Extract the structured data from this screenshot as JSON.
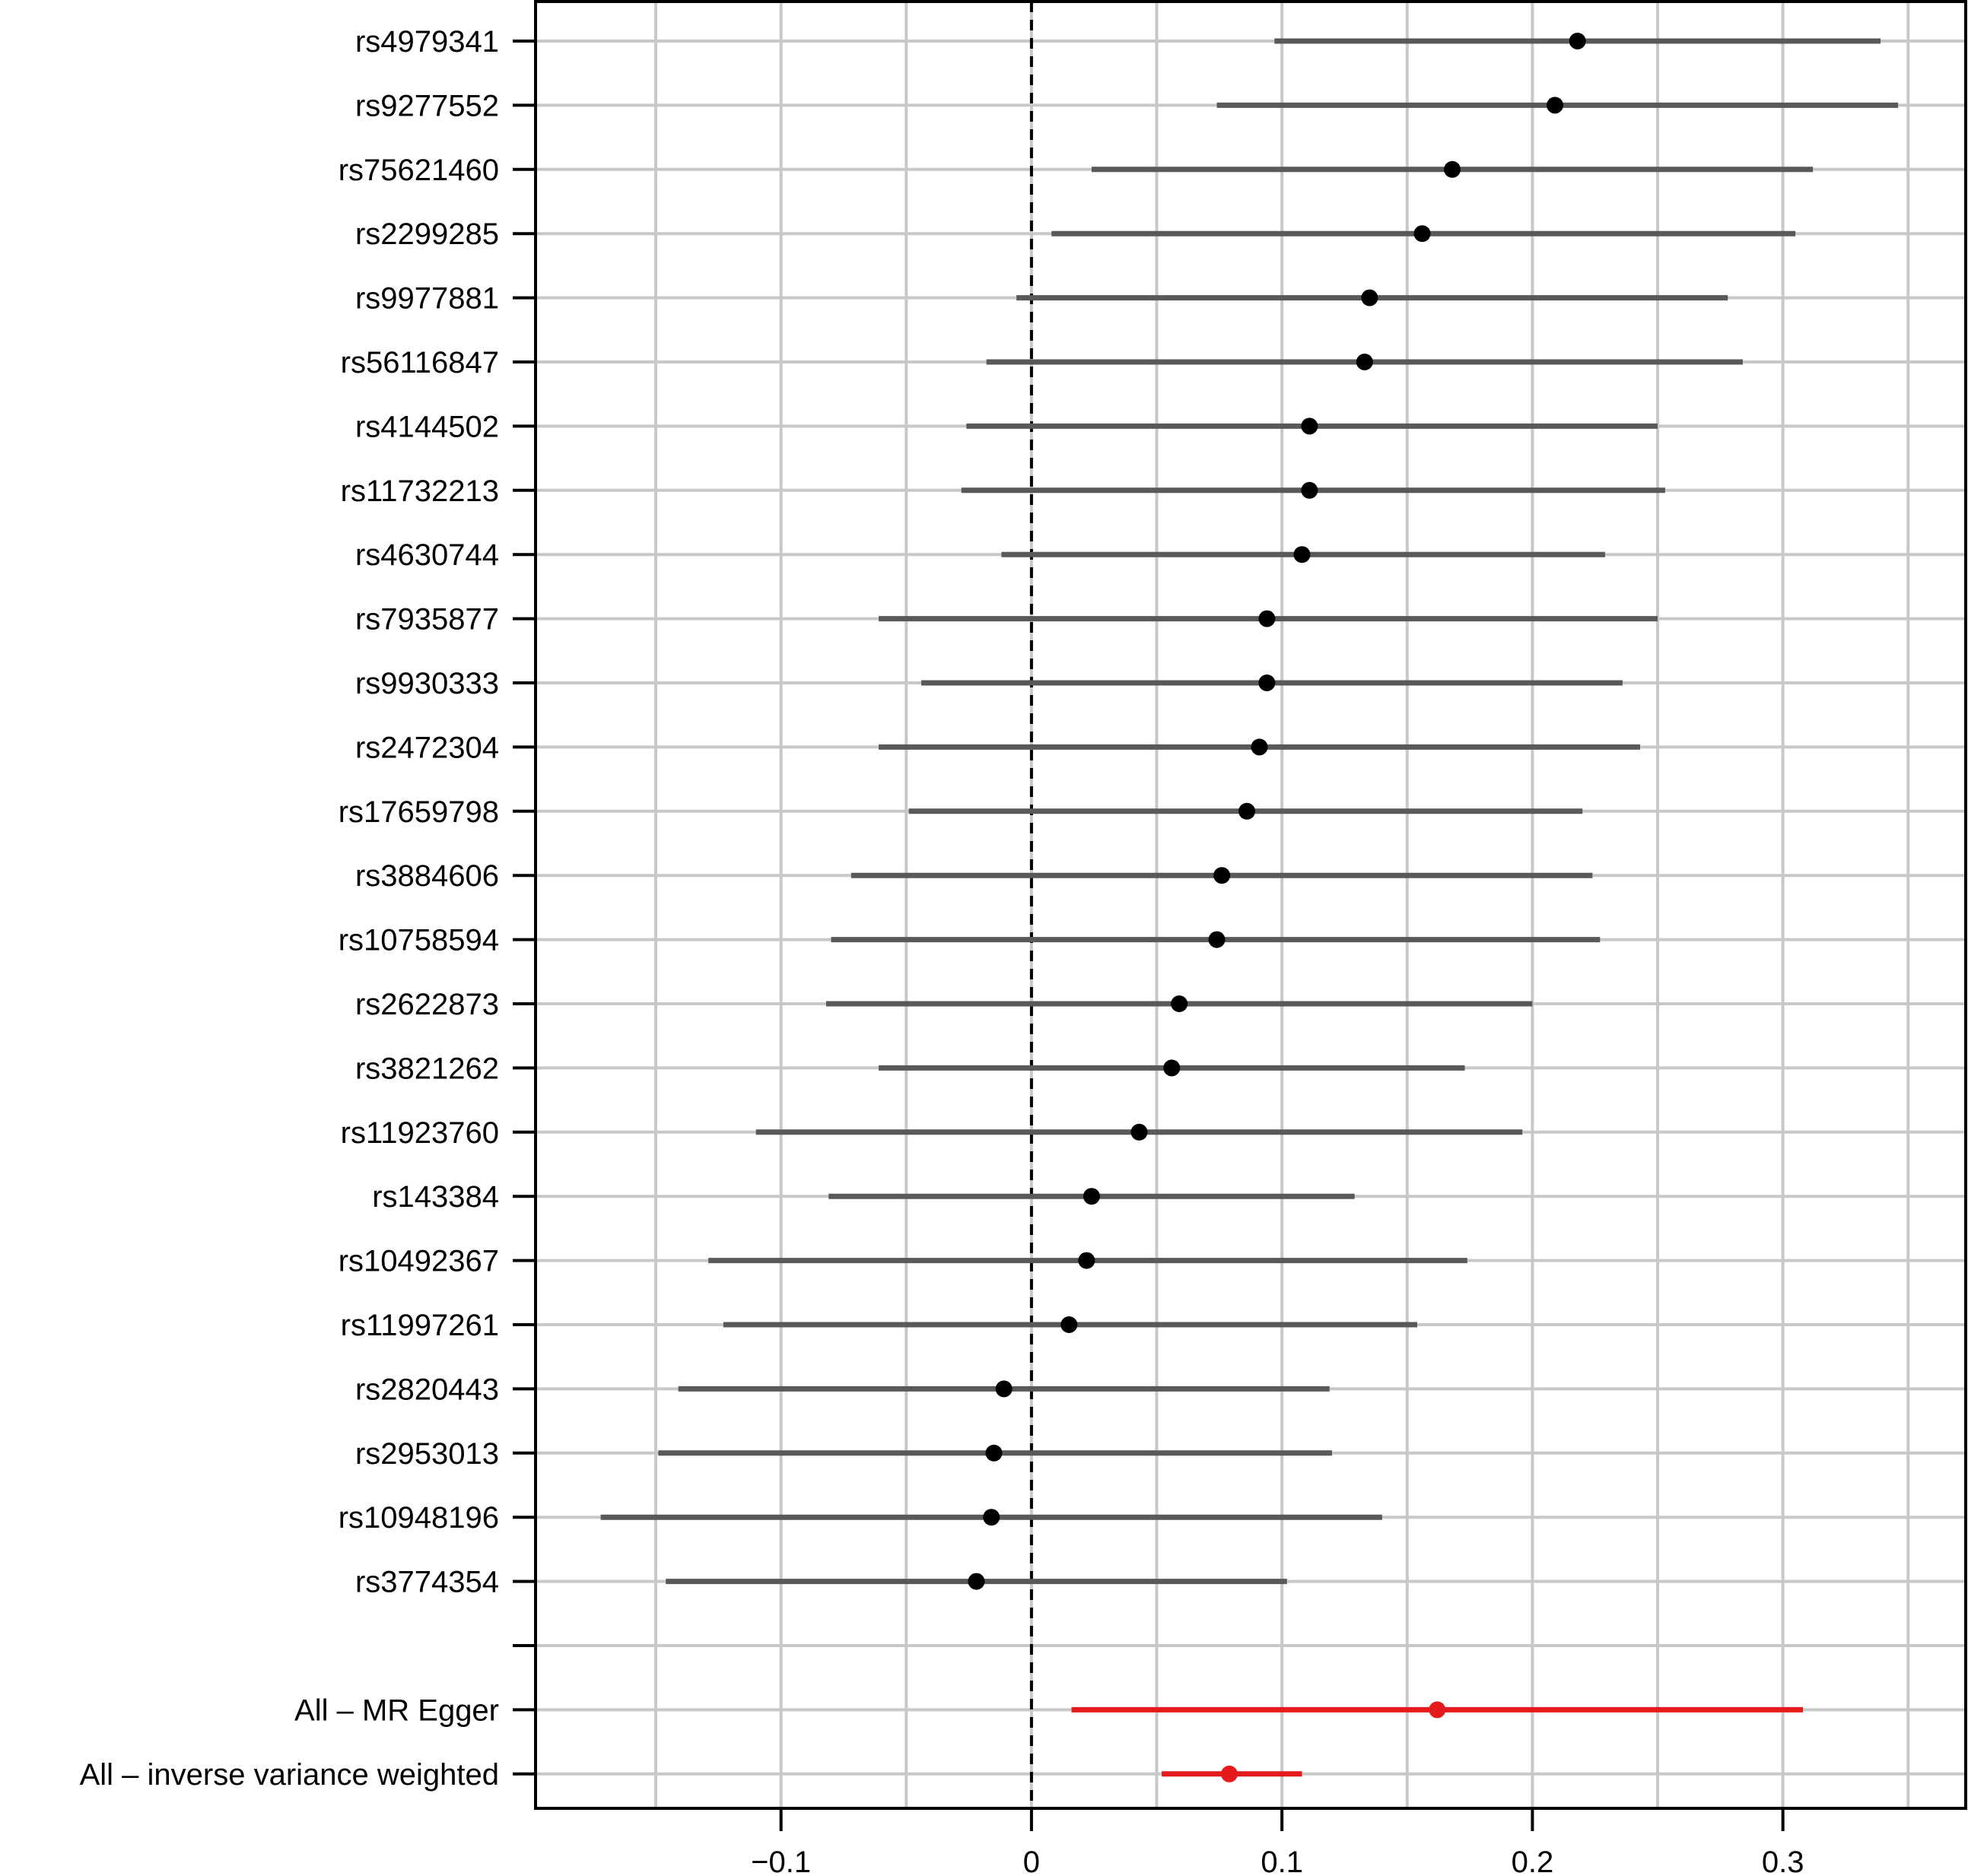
{
  "chart_data": {
    "type": "forest",
    "title": "",
    "xlabel": "",
    "ylabel": "",
    "xlim": [
      -0.198,
      0.373
    ],
    "x_ticks": [
      {
        "value": -0.1,
        "label": "−0.1"
      },
      {
        "value": 0,
        "label": "0"
      },
      {
        "value": 0.1,
        "label": "0.1"
      },
      {
        "value": 0.2,
        "label": "0.2"
      },
      {
        "value": 0.3,
        "label": "0.3"
      }
    ],
    "minor_gridlines": [
      -0.15,
      -0.05,
      0.05,
      0.15,
      0.25,
      0.35
    ],
    "grid": true,
    "reference_line": 0,
    "colors": {
      "snp_point": "#000000",
      "snp_interval": "#595959",
      "summary": "#e41a1c",
      "grid": "#c8c8c8"
    },
    "rows": [
      {
        "label": "rs4979341",
        "estimate": 0.218,
        "lower": 0.097,
        "upper": 0.339
      },
      {
        "label": "rs9277552",
        "estimate": 0.209,
        "lower": 0.074,
        "upper": 0.346
      },
      {
        "label": "rs75621460",
        "estimate": 0.168,
        "lower": 0.024,
        "upper": 0.312
      },
      {
        "label": "rs2299285",
        "estimate": 0.156,
        "lower": 0.008,
        "upper": 0.305
      },
      {
        "label": "rs9977881",
        "estimate": 0.135,
        "lower": -0.006,
        "upper": 0.278
      },
      {
        "label": "rs56116847",
        "estimate": 0.133,
        "lower": -0.018,
        "upper": 0.284
      },
      {
        "label": "rs4144502",
        "estimate": 0.111,
        "lower": -0.026,
        "upper": 0.25
      },
      {
        "label": "rs11732213",
        "estimate": 0.111,
        "lower": -0.028,
        "upper": 0.253
      },
      {
        "label": "rs4630744",
        "estimate": 0.108,
        "lower": -0.012,
        "upper": 0.229
      },
      {
        "label": "rs7935877",
        "estimate": 0.094,
        "lower": -0.061,
        "upper": 0.25
      },
      {
        "label": "rs9930333",
        "estimate": 0.094,
        "lower": -0.044,
        "upper": 0.236
      },
      {
        "label": "rs2472304",
        "estimate": 0.091,
        "lower": -0.061,
        "upper": 0.243
      },
      {
        "label": "rs17659798",
        "estimate": 0.086,
        "lower": -0.049,
        "upper": 0.22
      },
      {
        "label": "rs3884606",
        "estimate": 0.076,
        "lower": -0.072,
        "upper": 0.224
      },
      {
        "label": "rs10758594",
        "estimate": 0.074,
        "lower": -0.08,
        "upper": 0.227
      },
      {
        "label": "rs2622873",
        "estimate": 0.059,
        "lower": -0.082,
        "upper": 0.2
      },
      {
        "label": "rs3821262",
        "estimate": 0.056,
        "lower": -0.061,
        "upper": 0.173
      },
      {
        "label": "rs11923760",
        "estimate": 0.043,
        "lower": -0.11,
        "upper": 0.196
      },
      {
        "label": "rs143384",
        "estimate": 0.024,
        "lower": -0.081,
        "upper": 0.129
      },
      {
        "label": "rs10492367",
        "estimate": 0.022,
        "lower": -0.129,
        "upper": 0.174
      },
      {
        "label": "rs11997261",
        "estimate": 0.015,
        "lower": -0.123,
        "upper": 0.154
      },
      {
        "label": "rs2820443",
        "estimate": -0.011,
        "lower": -0.141,
        "upper": 0.119
      },
      {
        "label": "rs2953013",
        "estimate": -0.015,
        "lower": -0.149,
        "upper": 0.12
      },
      {
        "label": "rs10948196",
        "estimate": -0.016,
        "lower": -0.172,
        "upper": 0.14
      },
      {
        "label": "rs3774354",
        "estimate": -0.022,
        "lower": -0.146,
        "upper": 0.102
      },
      {
        "label": "",
        "spacer": true
      },
      {
        "label": "All – MR Egger",
        "estimate": 0.162,
        "lower": 0.016,
        "upper": 0.308,
        "summary": true
      },
      {
        "label": "All – inverse variance weighted",
        "estimate": 0.079,
        "lower": 0.052,
        "upper": 0.108,
        "summary": true
      }
    ]
  }
}
